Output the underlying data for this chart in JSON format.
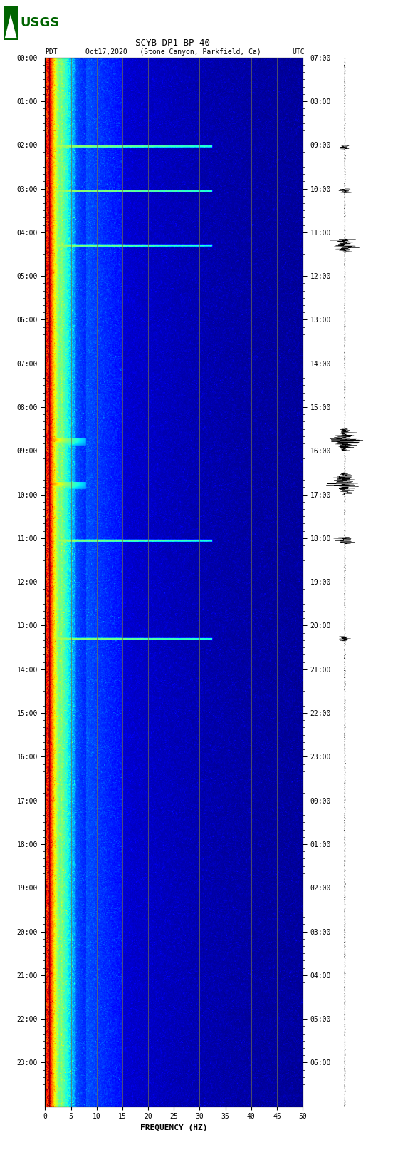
{
  "title_line1": "SCYB DP1 BP 40",
  "title_line2_center": "Oct17,2020   (Stone Canyon, Parkfield, Ca)",
  "title_line2_left": "PDT",
  "title_line2_right": "UTC",
  "xlabel": "FREQUENCY (HZ)",
  "freq_min": 0,
  "freq_max": 50,
  "time_hours": 24,
  "time_labels_left": [
    "00:00",
    "01:00",
    "02:00",
    "03:00",
    "04:00",
    "05:00",
    "06:00",
    "07:00",
    "08:00",
    "09:00",
    "10:00",
    "11:00",
    "12:00",
    "13:00",
    "14:00",
    "15:00",
    "16:00",
    "17:00",
    "18:00",
    "19:00",
    "20:00",
    "21:00",
    "22:00",
    "23:00"
  ],
  "time_labels_right": [
    "07:00",
    "08:00",
    "09:00",
    "10:00",
    "11:00",
    "12:00",
    "13:00",
    "14:00",
    "15:00",
    "16:00",
    "17:00",
    "18:00",
    "19:00",
    "20:00",
    "21:00",
    "22:00",
    "23:00",
    "00:00",
    "01:00",
    "02:00",
    "03:00",
    "04:00",
    "05:00",
    "06:00"
  ],
  "xticks": [
    0,
    5,
    10,
    15,
    20,
    25,
    30,
    35,
    40,
    45,
    50
  ],
  "red_line_times_approx": [
    2.05,
    3.05,
    4.3,
    11.05,
    13.3
  ],
  "event_times": [
    8.75,
    9.75
  ],
  "fig_width": 5.52,
  "fig_height": 16.13,
  "grid_color": "#707050",
  "title_fontsize": 9,
  "label_fontsize": 8,
  "tick_fontsize": 7,
  "colormap": "jet",
  "vmin": 0.0,
  "vmax": 1.0,
  "logo_color": "#006400",
  "logo_fontsize": 13
}
